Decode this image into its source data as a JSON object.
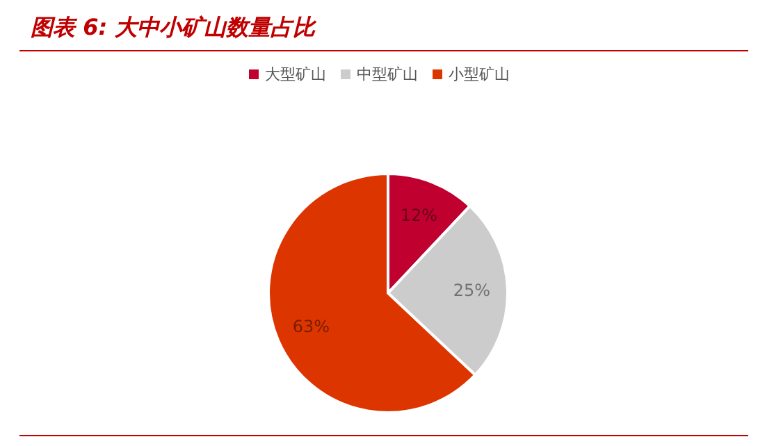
{
  "chart_data": {
    "type": "pie",
    "title": "图表 6:  大中小矿山数量占比",
    "categories": [
      "大型矿山",
      "中型矿山",
      "小型矿山"
    ],
    "values": [
      12,
      25,
      63
    ],
    "colors": [
      "#c0002f",
      "#cccccc",
      "#dd3500"
    ],
    "value_labels": [
      "12%",
      "25%",
      "63%"
    ],
    "legend": "top"
  }
}
